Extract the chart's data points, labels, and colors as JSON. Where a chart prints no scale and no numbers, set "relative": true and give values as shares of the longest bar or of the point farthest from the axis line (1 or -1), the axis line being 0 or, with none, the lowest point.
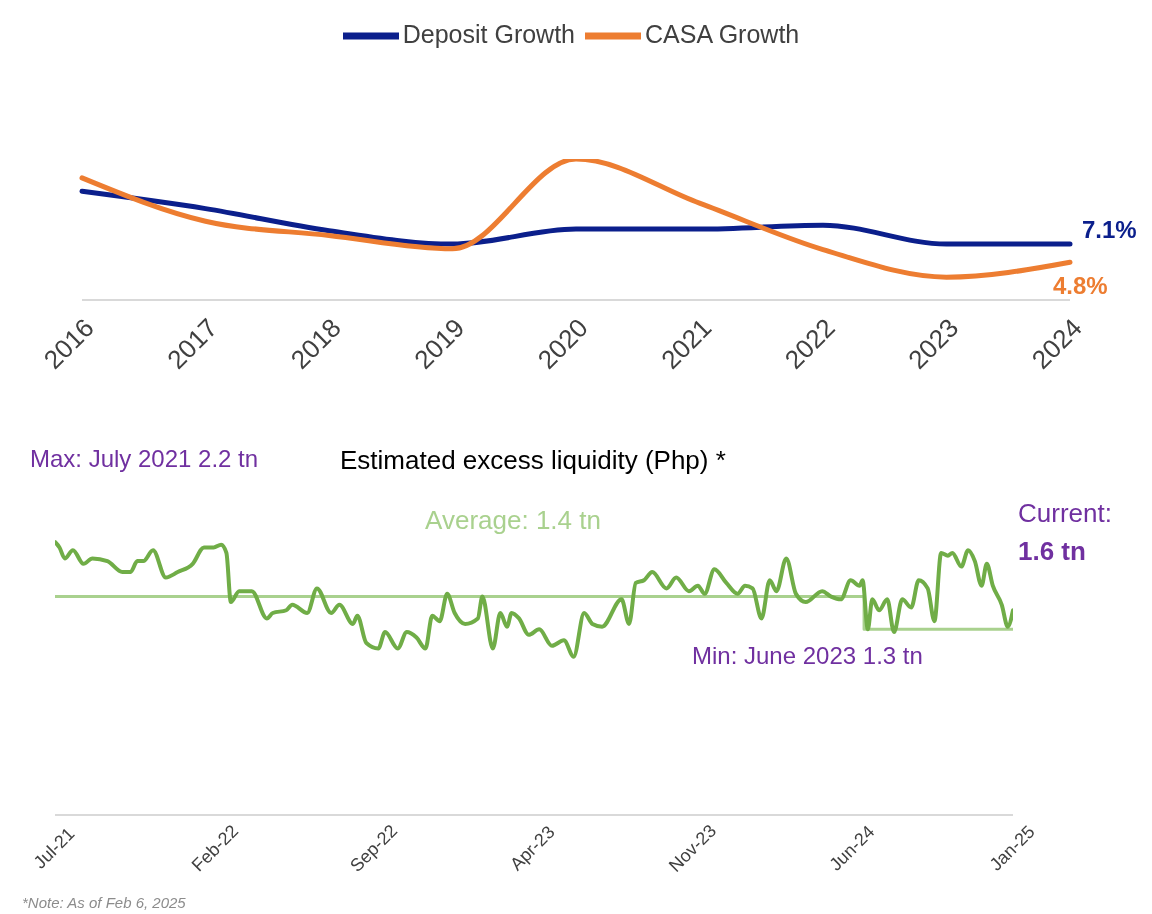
{
  "chart_data": [
    {
      "type": "line",
      "legend": "top",
      "grid": false,
      "marker": "none",
      "categories": [
        "2016",
        "2017",
        "2018",
        "2019",
        "2020",
        "2021",
        "2022",
        "2023",
        "2024"
      ],
      "series": [
        {
          "name": "Deposit Growth",
          "color": "#0b1f8c",
          "values": [
            13.8,
            11.6,
            8.8,
            7.1,
            9.0,
            9.0,
            9.5,
            7.1,
            7.1
          ],
          "value_labels": [
            null,
            null,
            null,
            null,
            null,
            null,
            null,
            null,
            "7.1%"
          ]
        },
        {
          "name": "CASA Growth",
          "color": "#ed7d31",
          "values": [
            15.5,
            10.0,
            8.2,
            6.5,
            17.9,
            12.3,
            6.4,
            2.9,
            4.8
          ],
          "value_labels": [
            null,
            null,
            null,
            null,
            null,
            null,
            null,
            null,
            "4.8%"
          ]
        }
      ]
    },
    {
      "type": "line",
      "relative": true,
      "grid": false,
      "marker": "none",
      "title": "Estimated excess liquidity (Php) *",
      "xlim": [
        "2021-07-01",
        "2025-01-01"
      ],
      "xticks": [
        {
          "value": "2021-07-01",
          "label": "Jul-21"
        },
        {
          "value": "2022-02-01",
          "label": "Feb-22"
        },
        {
          "value": "2022-09-01",
          "label": "Sep-22"
        },
        {
          "value": "2023-04-01",
          "label": "Apr-23"
        },
        {
          "value": "2023-11-01",
          "label": "Nov-23"
        },
        {
          "value": "2024-06-01",
          "label": "Jun-24"
        },
        {
          "value": "2025-01-01",
          "label": "Jan-25"
        }
      ],
      "series": [
        {
          "type": "step",
          "color": "#a9d18e",
          "x": [
            "2021-07-01",
            "2024-06-16",
            "2025-01-01"
          ],
          "values": [
            0.8,
            0.68,
            0.68
          ]
        },
        {
          "color": "#70ad47",
          "x": [
            "2021-07-01",
            "2021-07-07",
            "2021-07-14",
            "2021-07-25",
            "2021-08-08",
            "2021-08-20",
            "2021-09-09",
            "2021-09-29",
            "2021-10-10",
            "2021-10-19",
            "2021-10-27",
            "2021-11-09",
            "2021-11-26",
            "2021-12-12",
            "2022-01-01",
            "2022-01-16",
            "2022-01-29",
            "2022-02-08",
            "2022-02-15",
            "2022-02-21",
            "2022-03-04",
            "2022-03-21",
            "2022-04-10",
            "2022-04-18",
            "2022-05-06",
            "2022-05-14",
            "2022-06-03",
            "2022-06-16",
            "2022-07-05",
            "2022-07-16",
            "2022-08-03",
            "2022-08-09",
            "2022-08-21",
            "2022-09-06",
            "2022-09-15",
            "2022-10-02",
            "2022-10-14",
            "2022-10-27",
            "2022-11-08",
            "2022-11-17",
            "2022-11-27",
            "2022-12-07",
            "2022-12-17",
            "2022-12-31",
            "2023-01-17",
            "2023-01-23",
            "2023-02-06",
            "2023-02-16",
            "2023-02-25",
            "2023-03-03",
            "2023-03-13",
            "2023-03-26",
            "2023-04-09",
            "2023-04-26",
            "2023-05-12",
            "2023-05-25",
            "2023-06-08",
            "2023-06-19",
            "2023-07-02",
            "2023-07-28",
            "2023-08-07",
            "2023-08-16",
            "2023-08-27",
            "2023-09-07",
            "2023-09-26",
            "2023-10-09",
            "2023-10-26",
            "2023-11-07",
            "2023-11-16",
            "2023-11-29",
            "2023-12-15",
            "2023-12-30",
            "2024-01-09",
            "2024-01-19",
            "2024-01-31",
            "2024-02-11",
            "2024-02-20",
            "2024-03-04",
            "2024-03-17",
            "2024-03-30",
            "2024-04-21",
            "2024-05-03",
            "2024-05-16",
            "2024-05-29",
            "2024-06-10",
            "2024-06-14",
            "2024-06-21",
            "2024-06-27",
            "2024-07-06",
            "2024-07-17",
            "2024-07-26",
            "2024-08-06",
            "2024-08-18",
            "2024-08-28",
            "2024-09-09",
            "2024-09-18",
            "2024-09-27",
            "2024-10-06",
            "2024-10-12",
            "2024-10-24",
            "2024-11-02",
            "2024-11-11",
            "2024-11-20",
            "2024-11-27",
            "2024-12-05",
            "2024-12-17",
            "2024-12-25",
            "2025-01-01"
          ],
          "values": [
            1.0,
            0.98,
            0.94,
            0.97,
            0.92,
            0.94,
            0.93,
            0.89,
            0.89,
            0.93,
            0.93,
            0.97,
            0.87,
            0.89,
            0.92,
            0.98,
            0.98,
            0.99,
            0.96,
            0.78,
            0.82,
            0.82,
            0.72,
            0.74,
            0.75,
            0.77,
            0.74,
            0.83,
            0.74,
            0.77,
            0.7,
            0.73,
            0.63,
            0.61,
            0.67,
            0.61,
            0.67,
            0.65,
            0.61,
            0.73,
            0.71,
            0.81,
            0.74,
            0.7,
            0.72,
            0.8,
            0.61,
            0.74,
            0.69,
            0.74,
            0.72,
            0.66,
            0.68,
            0.62,
            0.64,
            0.58,
            0.74,
            0.7,
            0.69,
            0.79,
            0.7,
            0.85,
            0.86,
            0.89,
            0.83,
            0.87,
            0.82,
            0.84,
            0.81,
            0.9,
            0.85,
            0.81,
            0.84,
            0.83,
            0.72,
            0.86,
            0.82,
            0.94,
            0.81,
            0.78,
            0.82,
            0.8,
            0.79,
            0.86,
            0.84,
            0.86,
            0.68,
            0.79,
            0.75,
            0.79,
            0.67,
            0.79,
            0.76,
            0.86,
            0.83,
            0.71,
            0.96,
            0.95,
            0.96,
            0.91,
            0.97,
            0.93,
            0.84,
            0.92,
            0.84,
            0.77,
            0.69,
            0.75
          ]
        }
      ],
      "annotations": [
        "Max: July 2021 2.2 tn",
        "Average: 1.4 tn",
        "Current:",
        "1.6 tn",
        "Min: June 2023 1.3 tn",
        "*Note: As of Feb 6, 2025"
      ]
    }
  ]
}
